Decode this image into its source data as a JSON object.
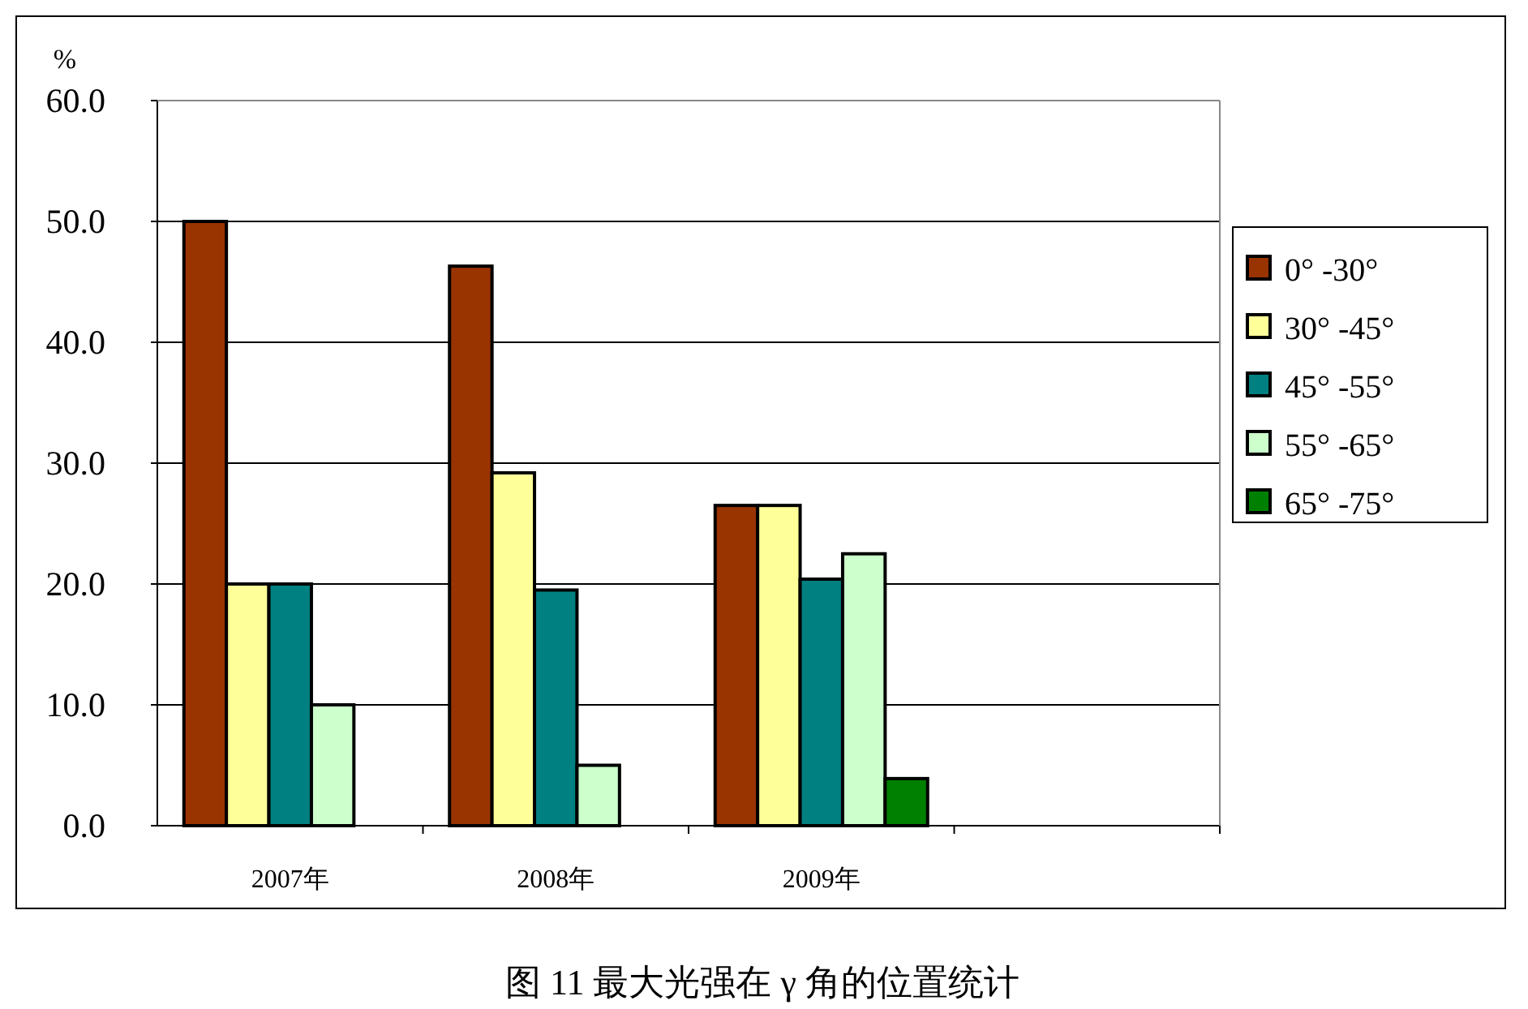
{
  "chart_data": {
    "type": "bar",
    "title": "图 11 最大光强在 γ 角的位置统计",
    "ylabel": "%",
    "categories": [
      "2007年",
      "2008年",
      "2009年",
      null
    ],
    "series": [
      {
        "name": "0° -30°",
        "color": "#993300",
        "values": [
          50.0,
          46.3,
          26.5,
          null
        ]
      },
      {
        "name": "30° -45°",
        "color": "#ffff99",
        "values": [
          20.0,
          29.2,
          26.5,
          null
        ]
      },
      {
        "name": "45° -55°",
        "color": "#008080",
        "values": [
          20.0,
          19.5,
          20.4,
          null
        ]
      },
      {
        "name": "55° -65°",
        "color": "#ccffcc",
        "values": [
          10.0,
          5.0,
          22.5,
          null
        ]
      },
      {
        "name": "65° -75°",
        "color": "#008000",
        "values": [
          null,
          null,
          3.9,
          null
        ]
      }
    ],
    "ylim": [
      0,
      60
    ],
    "yticks": [
      {
        "value": 0,
        "label": "0.0"
      },
      {
        "value": 10,
        "label": "10.0"
      },
      {
        "value": 20,
        "label": "20.0"
      },
      {
        "value": 30,
        "label": "30.0"
      },
      {
        "value": 40,
        "label": "40.0"
      },
      {
        "value": 50,
        "label": "50.0"
      },
      {
        "value": 60,
        "label": "60.0"
      }
    ],
    "grid": "y",
    "legend": "right"
  }
}
